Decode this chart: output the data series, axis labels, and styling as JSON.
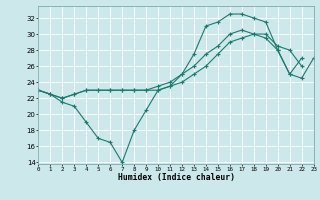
{
  "xlabel": "Humidex (Indice chaleur)",
  "bg_color": "#cde8eb",
  "grid_color": "#b0d8dc",
  "line_color": "#1a7a6e",
  "xlim": [
    0,
    23
  ],
  "ylim": [
    14,
    33
  ],
  "yticks": [
    14,
    16,
    18,
    20,
    22,
    24,
    26,
    28,
    30,
    32
  ],
  "xticks": [
    0,
    1,
    2,
    3,
    4,
    5,
    6,
    7,
    8,
    9,
    10,
    11,
    12,
    13,
    14,
    15,
    16,
    17,
    18,
    19,
    20,
    21,
    22,
    23
  ],
  "line1_y": [
    23,
    22.5,
    21.5,
    21,
    19,
    17,
    16.5,
    14,
    18,
    20.5,
    23,
    23.5,
    25,
    27.5,
    31,
    31.5,
    32.5,
    32.5,
    32,
    31.5,
    28,
    25,
    27,
    null
  ],
  "line2_y": [
    23,
    22.5,
    22,
    22.5,
    23,
    23,
    23,
    23,
    23,
    23,
    23,
    23.5,
    24,
    25,
    26,
    27.5,
    29,
    29.5,
    30,
    30,
    28.5,
    28,
    26,
    null
  ],
  "line3_y": [
    23,
    22.5,
    22,
    22.5,
    23,
    23,
    23,
    23,
    23,
    23,
    23.5,
    24,
    25,
    26,
    27.5,
    28.5,
    30,
    30.5,
    30,
    29.5,
    28,
    25,
    24.5,
    27
  ]
}
